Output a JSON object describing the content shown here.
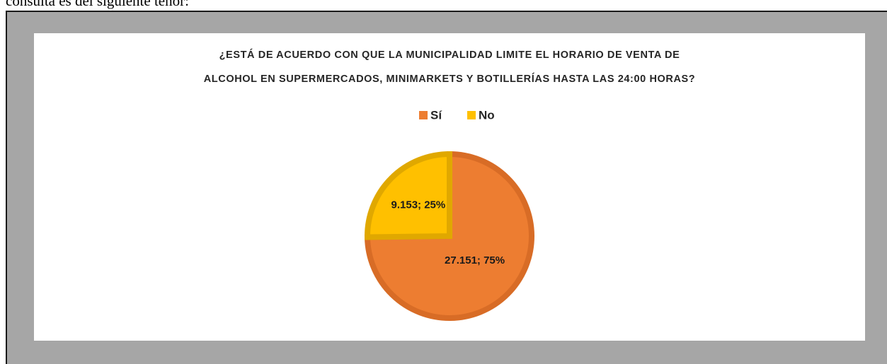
{
  "document_text": "consulta es del siguiente tenor:",
  "chart_data": {
    "type": "pie",
    "title": "¿ESTÁ DE ACUERDO CON QUE LA MUNICIPALIDAD LIMITE EL HORARIO DE VENTA DE ALCOHOL EN SUPERMERCADOS, MINIMARKETS Y BOTILLERÍAS HASTA LAS 24:00 HORAS?",
    "categories": [
      "Sí",
      "No"
    ],
    "values": [
      27151,
      9153
    ],
    "value_labels": [
      "27.151; 75%",
      "9.153; 25%"
    ],
    "colors": [
      "#ed7d31",
      "#ffc000"
    ],
    "legend": "top"
  }
}
